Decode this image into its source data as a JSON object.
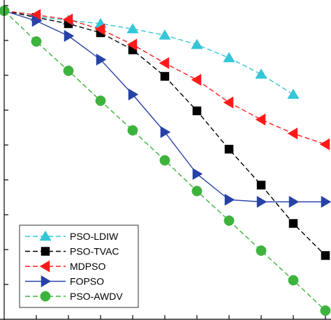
{
  "chart_data": {
    "type": "line",
    "title": "",
    "xlabel": "",
    "ylabel": "",
    "x": [
      1,
      2,
      3,
      4,
      5,
      6,
      7,
      8,
      9,
      10,
      11
    ],
    "xlim": [
      1,
      11
    ],
    "ylim": [
      0,
      9
    ],
    "grid": false,
    "legend_position": "bottom-left",
    "series": [
      {
        "name": "PSO-LDIW",
        "color": "#35c6d8",
        "dash": "dashed",
        "marker": "triangle-up",
        "values": [
          8.85,
          8.68,
          8.58,
          8.48,
          8.33,
          8.15,
          7.88,
          7.5,
          7.03,
          6.45,
          null
        ]
      },
      {
        "name": "PSO-TVAC",
        "color": "#000000",
        "dash": "dashed",
        "marker": "square",
        "values": [
          8.85,
          8.66,
          8.48,
          8.22,
          7.73,
          6.97,
          5.98,
          4.88,
          3.85,
          2.75,
          1.83
        ]
      },
      {
        "name": "MDPSO",
        "color": "#ff1a1a",
        "dash": "dashed",
        "marker": "triangle-left",
        "values": [
          8.85,
          8.73,
          8.6,
          8.32,
          7.88,
          7.35,
          6.87,
          6.22,
          5.73,
          5.33,
          5.02
        ]
      },
      {
        "name": "FOPSO",
        "color": "#2742a6",
        "dash": "solid",
        "marker": "triangle-right",
        "values": [
          8.85,
          8.56,
          8.13,
          7.45,
          6.45,
          5.37,
          4.17,
          3.43,
          3.37,
          3.37,
          3.37
        ]
      },
      {
        "name": "PSO-AWDV",
        "color": "#3db33d",
        "dash": "dashed",
        "marker": "circle",
        "values": [
          8.85,
          7.97,
          7.13,
          6.27,
          5.42,
          4.56,
          3.68,
          2.83,
          1.97,
          1.12,
          0.25
        ]
      }
    ]
  }
}
